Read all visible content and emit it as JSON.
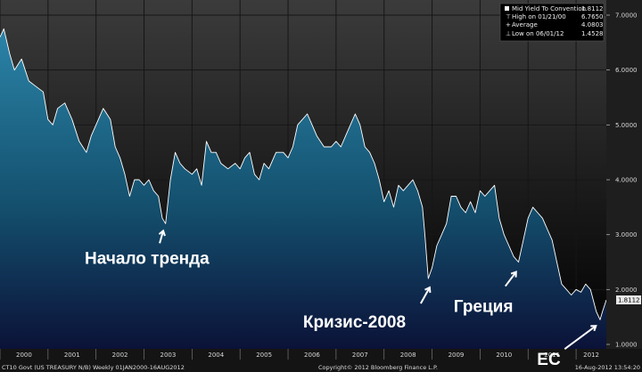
{
  "chart_data": {
    "type": "area",
    "title": "",
    "xlabel": "",
    "ylabel": "",
    "ylim": [
      1.0,
      7.0
    ],
    "xlim": [
      2000.0,
      2012.63
    ],
    "grid": true,
    "y_ticks": [
      {
        "value": 1.0,
        "label": "1.0000"
      },
      {
        "value": 2.0,
        "label": "2.0000"
      },
      {
        "value": 3.0,
        "label": "3.0000"
      },
      {
        "value": 4.0,
        "label": "4.0000"
      },
      {
        "value": 5.0,
        "label": "5.0000"
      },
      {
        "value": 6.0,
        "label": "6.0000"
      },
      {
        "value": 7.0,
        "label": "7.0000"
      }
    ],
    "x_ticks": [
      "2000",
      "2001",
      "2002",
      "2003",
      "2004",
      "2005",
      "2006",
      "2007",
      "2008",
      "2009",
      "2010",
      "2011",
      "2012"
    ],
    "series": [
      {
        "name": "Mid Yield To Convention",
        "x": [
          2000.0,
          2000.08,
          2000.2,
          2000.3,
          2000.45,
          2000.6,
          2000.75,
          2000.9,
          2001.0,
          2001.1,
          2001.2,
          2001.35,
          2001.5,
          2001.65,
          2001.8,
          2001.9,
          2002.0,
          2002.15,
          2002.3,
          2002.4,
          2002.5,
          2002.6,
          2002.7,
          2002.8,
          2002.9,
          2003.0,
          2003.1,
          2003.2,
          2003.3,
          2003.38,
          2003.45,
          2003.55,
          2003.65,
          2003.75,
          2003.85,
          2004.0,
          2004.1,
          2004.2,
          2004.3,
          2004.4,
          2004.5,
          2004.6,
          2004.75,
          2004.9,
          2005.0,
          2005.1,
          2005.2,
          2005.3,
          2005.4,
          2005.5,
          2005.6,
          2005.75,
          2005.9,
          2006.0,
          2006.1,
          2006.2,
          2006.3,
          2006.4,
          2006.5,
          2006.6,
          2006.75,
          2006.9,
          2007.0,
          2007.1,
          2007.2,
          2007.3,
          2007.4,
          2007.5,
          2007.6,
          2007.7,
          2007.8,
          2007.9,
          2008.0,
          2008.1,
          2008.2,
          2008.3,
          2008.4,
          2008.5,
          2008.6,
          2008.7,
          2008.8,
          2008.85,
          2008.92,
          2009.0,
          2009.1,
          2009.2,
          2009.3,
          2009.4,
          2009.5,
          2009.6,
          2009.7,
          2009.8,
          2009.9,
          2010.0,
          2010.1,
          2010.2,
          2010.3,
          2010.4,
          2010.5,
          2010.6,
          2010.7,
          2010.8,
          2010.9,
          2011.0,
          2011.1,
          2011.2,
          2011.3,
          2011.4,
          2011.5,
          2011.6,
          2011.7,
          2011.8,
          2011.9,
          2012.0,
          2012.1,
          2012.2,
          2012.3,
          2012.42,
          2012.5,
          2012.55,
          2012.63
        ],
        "y": [
          6.6,
          6.75,
          6.3,
          6.0,
          6.2,
          5.8,
          5.7,
          5.6,
          5.1,
          5.0,
          5.3,
          5.4,
          5.1,
          4.7,
          4.5,
          4.8,
          5.0,
          5.3,
          5.1,
          4.6,
          4.4,
          4.1,
          3.7,
          4.0,
          4.0,
          3.9,
          4.0,
          3.8,
          3.7,
          3.3,
          3.2,
          4.0,
          4.5,
          4.3,
          4.2,
          4.1,
          4.2,
          3.9,
          4.7,
          4.5,
          4.5,
          4.3,
          4.2,
          4.3,
          4.2,
          4.4,
          4.5,
          4.1,
          4.0,
          4.3,
          4.2,
          4.5,
          4.5,
          4.4,
          4.6,
          5.0,
          5.1,
          5.2,
          5.0,
          4.8,
          4.6,
          4.6,
          4.7,
          4.6,
          4.8,
          5.0,
          5.2,
          5.0,
          4.6,
          4.5,
          4.3,
          4.0,
          3.6,
          3.8,
          3.5,
          3.9,
          3.8,
          3.9,
          4.0,
          3.8,
          3.5,
          3.0,
          2.2,
          2.4,
          2.8,
          3.0,
          3.2,
          3.7,
          3.7,
          3.5,
          3.4,
          3.6,
          3.4,
          3.8,
          3.7,
          3.8,
          3.9,
          3.3,
          3.0,
          2.8,
          2.6,
          2.5,
          2.9,
          3.3,
          3.5,
          3.4,
          3.3,
          3.1,
          2.9,
          2.5,
          2.1,
          2.0,
          1.9,
          2.0,
          1.95,
          2.1,
          2.0,
          1.6,
          1.45,
          1.6,
          1.8112
        ]
      }
    ],
    "legend": {
      "position": "top-right",
      "rows": [
        {
          "marker": "square",
          "label": "Mid Yield To Convention",
          "value": "1.8112"
        },
        {
          "marker": "high",
          "label": "High on 01/21/00",
          "value": "6.7650"
        },
        {
          "marker": "avg",
          "label": "Average",
          "value": "4.0803"
        },
        {
          "marker": "low",
          "label": "Low on 06/01/12",
          "value": "1.4528"
        }
      ]
    },
    "last_value_label": "1.8112",
    "annotations": [
      {
        "text": "Начало тренда",
        "x": 2003.4,
        "y": 3.2
      },
      {
        "text": "Кризис-2008",
        "x": 2008.95,
        "y": 2.2
      },
      {
        "text": "Греция",
        "x": 2010.75,
        "y": 2.45
      },
      {
        "text": "ЕС",
        "x": 2012.45,
        "y": 1.5
      }
    ],
    "footer": {
      "left": "CT10 Govt (US TREASURY N/B)  Weekly 01JAN2000-16AUG2012",
      "center": "Copyright© 2012 Bloomberg Finance L.P.",
      "right": "16-Aug-2012 13:54:20"
    }
  },
  "colors": {
    "background_top": "#3a3a3a",
    "background_bottom": "#000000",
    "fill_top": "#2a7a9e",
    "fill_bottom": "#0a1640",
    "line": "#ffffff",
    "grid": "#1b1b1b",
    "axis_band": "#252525"
  }
}
